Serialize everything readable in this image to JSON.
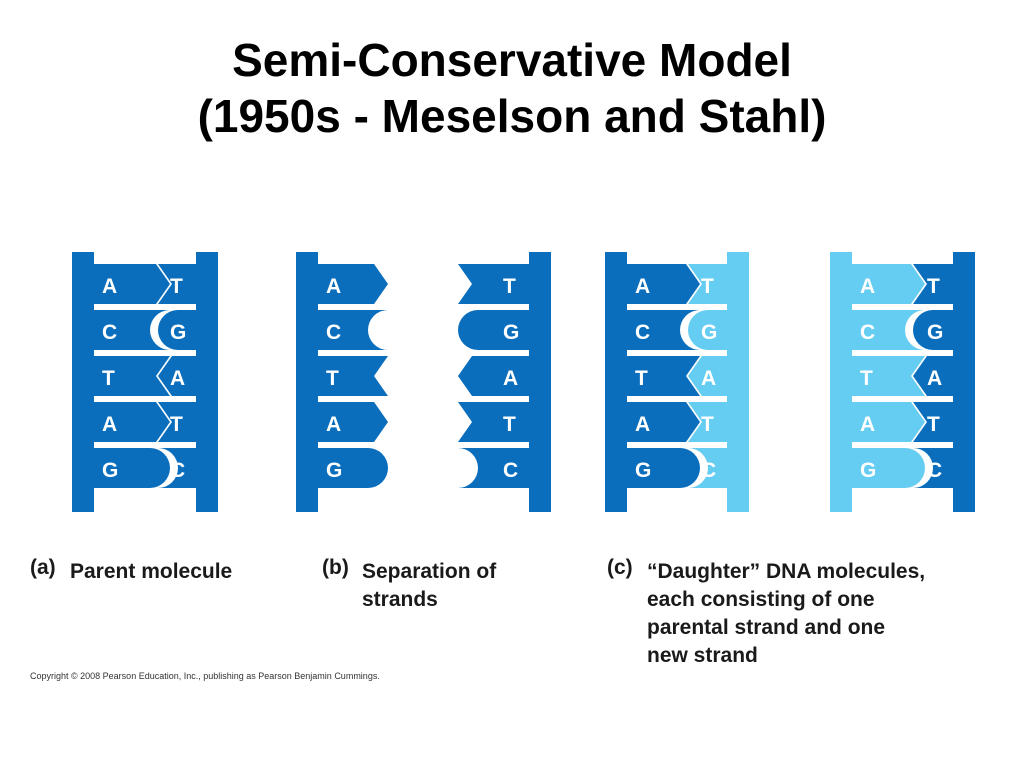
{
  "title": {
    "line1": "Semi-Conservative Model",
    "line2": "(1950s - Meselson and Stahl)"
  },
  "colors": {
    "parent_strand": "#0a6ebd",
    "new_strand": "#66cdf2",
    "base_text": "#ffffff"
  },
  "panels": {
    "a": {
      "letter": "(a)",
      "caption": [
        "Parent molecule"
      ],
      "left_bases": [
        "A",
        "C",
        "T",
        "A",
        "G"
      ],
      "right_bases": [
        "T",
        "G",
        "A",
        "T",
        "C"
      ]
    },
    "b": {
      "letter": "(b)",
      "caption": [
        "Separation of",
        "strands"
      ],
      "left_bases": [
        "A",
        "C",
        "T",
        "A",
        "G"
      ],
      "right_bases": [
        "T",
        "G",
        "A",
        "T",
        "C"
      ]
    },
    "c": {
      "letter": "(c)",
      "caption": [
        "“Daughter” DNA molecules,",
        "each consisting of one",
        "parental strand and one",
        "new strand"
      ],
      "mol1": {
        "left_bases": [
          "A",
          "C",
          "T",
          "A",
          "G"
        ],
        "right_bases": [
          "T",
          "G",
          "A",
          "T",
          "C"
        ]
      },
      "mol2": {
        "left_bases": [
          "A",
          "C",
          "T",
          "A",
          "G"
        ],
        "right_bases": [
          "T",
          "G",
          "A",
          "T",
          "C"
        ]
      }
    }
  },
  "copyright": "Copyright © 2008 Pearson Education, Inc., publishing as Pearson Benjamin Cummings."
}
